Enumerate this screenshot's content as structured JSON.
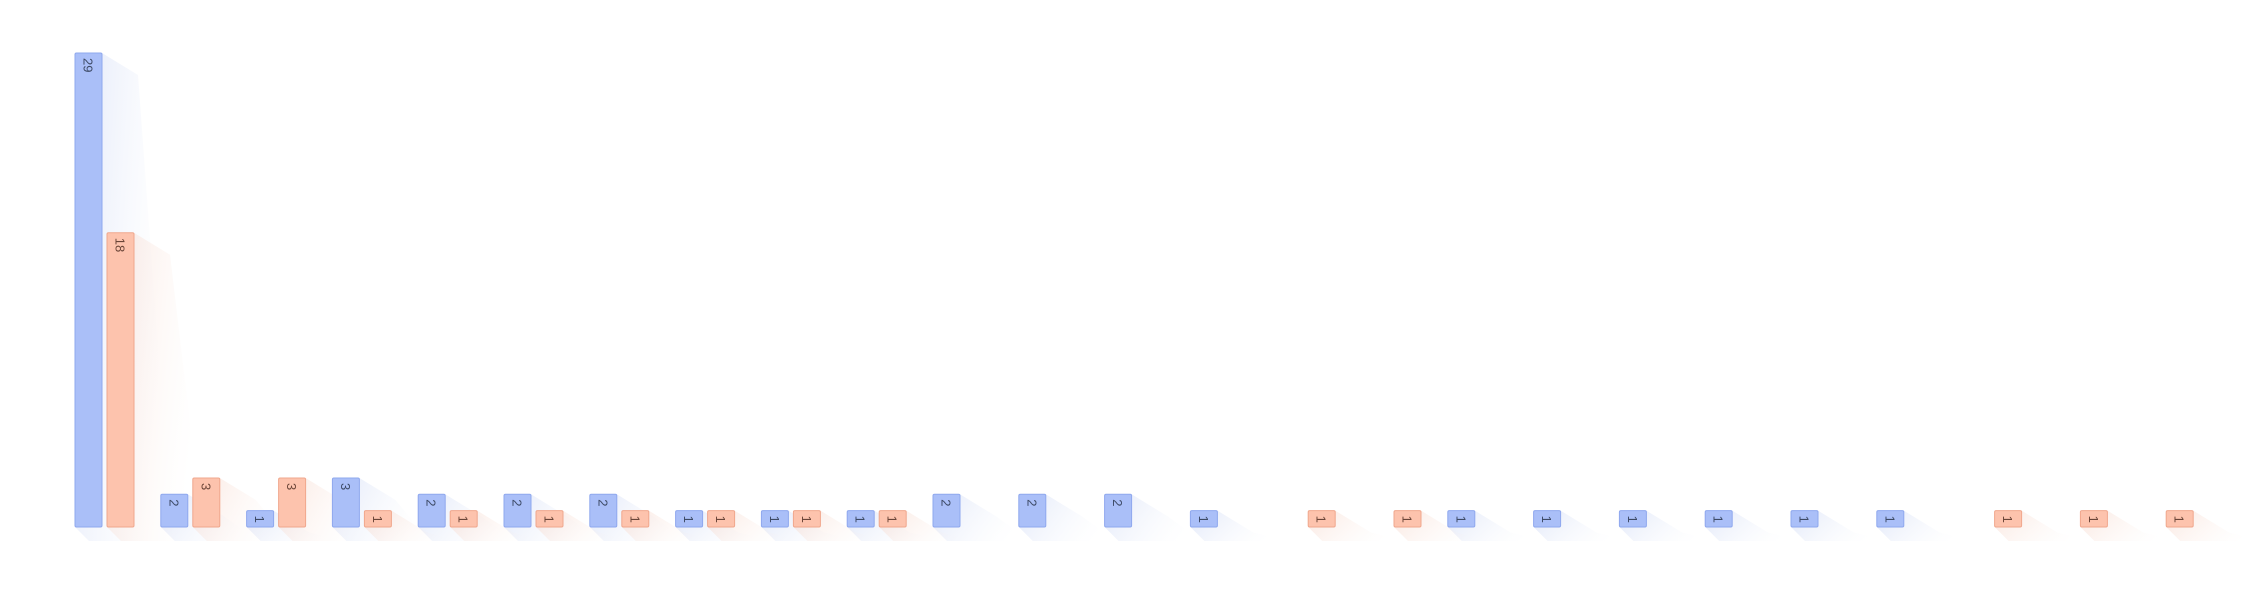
{
  "chart_data": {
    "type": "bar",
    "orientation": "vertical",
    "grid": false,
    "legend": "none",
    "title": "",
    "xlabel": "",
    "ylabel": "",
    "ylim": [
      0,
      29
    ],
    "categories": [
      "",
      "",
      "",
      "",
      "",
      "",
      "",
      "",
      "",
      "",
      "",
      "",
      "",
      "",
      "",
      "",
      "",
      "",
      "",
      "",
      "",
      "",
      "",
      "",
      "",
      ""
    ],
    "series": [
      {
        "color": "#aabff8",
        "stroke": "#8fa8ee",
        "values": [
          29,
          2,
          1,
          3,
          2,
          2,
          2,
          1,
          1,
          1,
          2,
          2,
          2,
          1,
          null,
          null,
          1,
          1,
          1,
          1,
          1,
          1,
          null,
          null,
          null,
          null
        ],
        "labels": [
          "29",
          "2",
          "1",
          "3",
          "2",
          "2",
          "2",
          "1",
          "1",
          "1",
          "2",
          "2",
          "2",
          "1",
          "",
          "",
          "1",
          "1",
          "1",
          "1",
          "1",
          "1",
          "",
          "",
          "",
          ""
        ]
      },
      {
        "color": "#fdc3ad",
        "stroke": "#f0a78d",
        "values": [
          18,
          3,
          3,
          1,
          1,
          1,
          1,
          1,
          1,
          1,
          null,
          null,
          null,
          null,
          1,
          1,
          null,
          null,
          null,
          null,
          null,
          null,
          1,
          1,
          1,
          null
        ],
        "labels": [
          "18",
          "3",
          "3",
          "1",
          "1",
          "1",
          "1",
          "1",
          "1",
          "1",
          "",
          "",
          "",
          "",
          "1",
          "1",
          "",
          "",
          "",
          "",
          "",
          "",
          "1",
          "1",
          "1",
          ""
        ]
      }
    ]
  }
}
